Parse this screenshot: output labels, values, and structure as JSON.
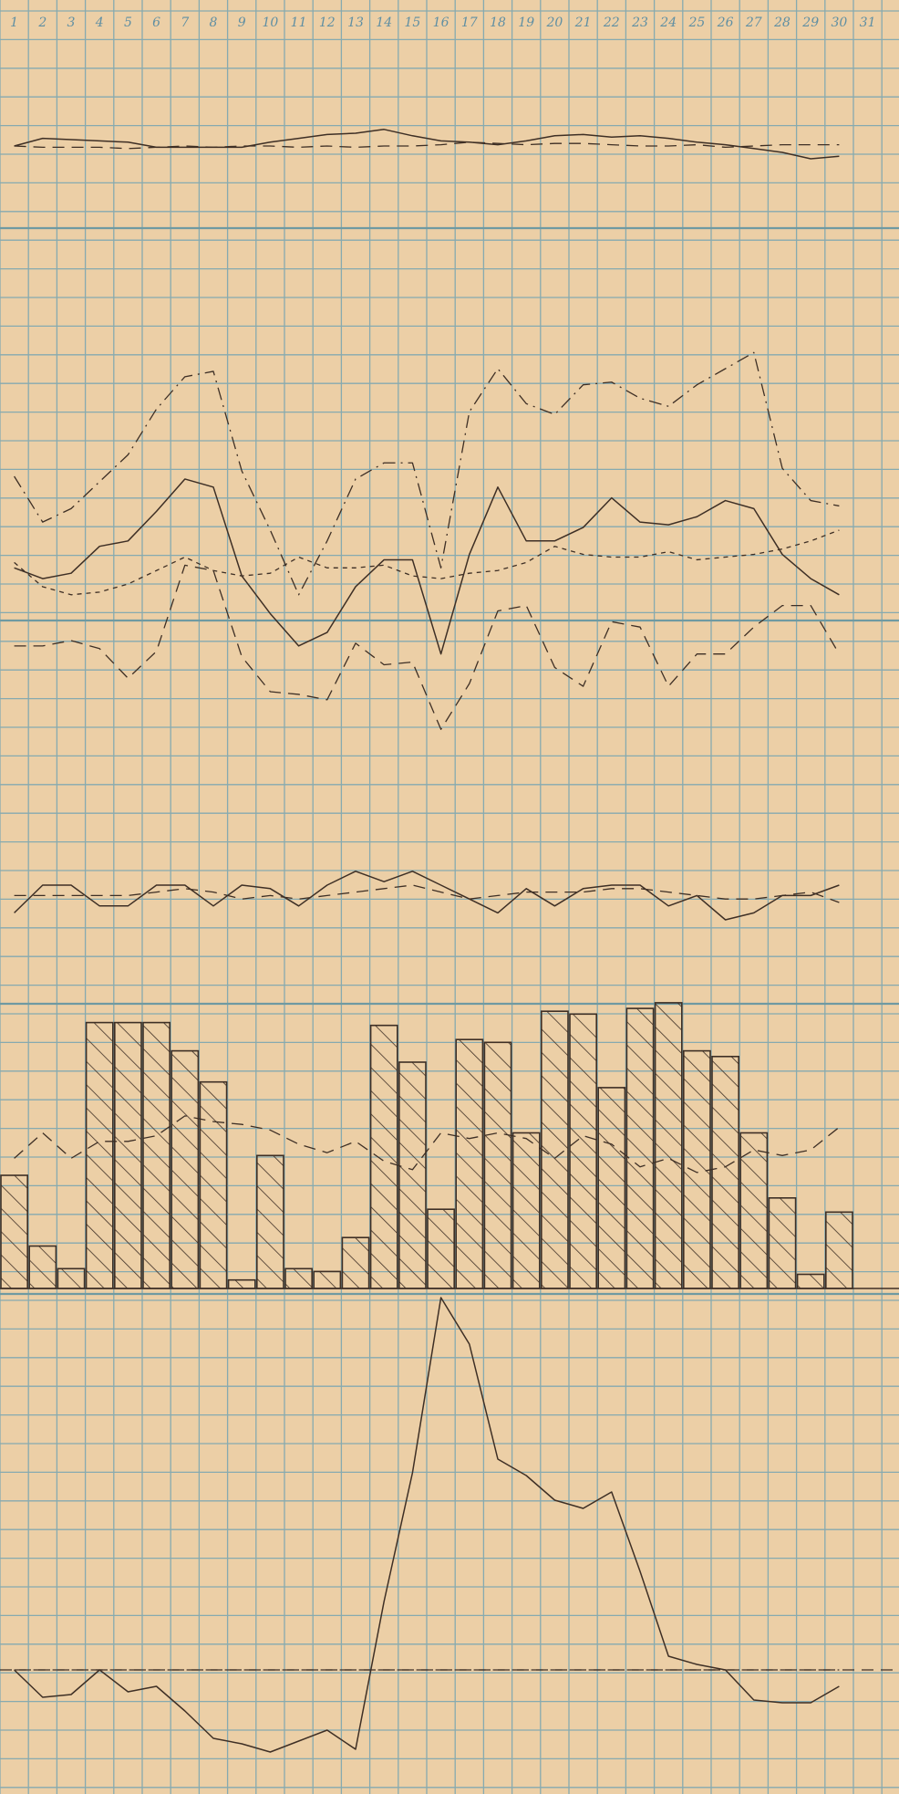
{
  "colors": {
    "paper": "#eccfa6",
    "grid": "#86aab0",
    "grid_bold": "#6f9aa2",
    "ink": "#3e2f25",
    "day_label": "#5f8fa3"
  },
  "days": [
    "1",
    "2",
    "3",
    "4",
    "5",
    "6",
    "7",
    "8",
    "9",
    "10",
    "11",
    "12",
    "13",
    "14",
    "15",
    "16",
    "17",
    "18",
    "19",
    "20",
    "21",
    "22",
    "23",
    "24",
    "25",
    "26",
    "27",
    "28",
    "29",
    "30",
    "31"
  ],
  "chart_data": [
    {
      "type": "line",
      "panel": "top",
      "x": [
        1,
        2,
        3,
        4,
        5,
        6,
        7,
        8,
        9,
        10,
        11,
        12,
        13,
        14,
        15,
        16,
        17,
        18,
        19,
        20,
        21,
        22,
        23,
        24,
        25,
        26,
        27,
        28,
        29,
        30
      ],
      "series": [
        {
          "style": "solid",
          "values": [
            0.0,
            0.6,
            0.5,
            0.4,
            0.3,
            -0.1,
            -0.1,
            -0.1,
            -0.1,
            0.3,
            0.6,
            0.9,
            1.0,
            1.3,
            0.8,
            0.4,
            0.3,
            0.1,
            0.4,
            0.8,
            0.9,
            0.7,
            0.8,
            0.6,
            0.3,
            0.1,
            -0.2,
            -0.5,
            -1.0,
            -0.8
          ]
        },
        {
          "style": "dashed",
          "values": [
            0.0,
            -0.1,
            -0.1,
            -0.1,
            -0.2,
            -0.1,
            0.0,
            -0.1,
            0.0,
            0.0,
            -0.1,
            0.0,
            -0.1,
            0.0,
            0.0,
            0.1,
            0.3,
            0.2,
            0.1,
            0.2,
            0.2,
            0.1,
            0.0,
            0.0,
            0.1,
            -0.1,
            0.0,
            0.1,
            0.1,
            0.1
          ]
        }
      ]
    },
    {
      "type": "line",
      "panel": "upper-middle",
      "x": [
        1,
        2,
        3,
        4,
        5,
        6,
        7,
        8,
        9,
        10,
        11,
        12,
        13,
        14,
        15,
        16,
        17,
        18,
        19,
        20,
        21,
        22,
        23,
        24,
        25,
        26,
        27,
        28,
        29,
        30
      ],
      "series": [
        {
          "style": "dash-dot",
          "values": [
            8.0,
            6.3,
            6.8,
            7.8,
            8.8,
            10.5,
            11.7,
            11.9,
            8.2,
            6.0,
            3.6,
            5.6,
            7.9,
            8.5,
            8.5,
            4.6,
            10.4,
            12.0,
            10.7,
            10.3,
            11.4,
            11.5,
            10.9,
            10.6,
            11.4,
            12.0,
            12.6,
            8.3,
            7.1,
            6.9
          ]
        },
        {
          "style": "solid",
          "values": [
            4.6,
            4.2,
            4.4,
            5.4,
            5.6,
            6.7,
            7.9,
            7.6,
            4.3,
            2.9,
            1.7,
            2.2,
            3.9,
            4.9,
            4.9,
            1.4,
            5.1,
            7.6,
            5.6,
            5.6,
            6.1,
            7.2,
            6.3,
            6.2,
            6.5,
            7.1,
            6.8,
            5.1,
            4.2,
            3.6
          ]
        },
        {
          "style": "dashed",
          "values": [
            1.7,
            1.7,
            1.9,
            1.6,
            0.5,
            1.5,
            4.7,
            4.5,
            1.3,
            0.0,
            -0.1,
            -0.3,
            1.8,
            1.0,
            1.1,
            -1.4,
            0.3,
            3.0,
            3.2,
            0.9,
            0.2,
            2.6,
            2.4,
            0.2,
            1.4,
            1.4,
            2.4,
            3.2,
            3.2,
            1.4
          ]
        },
        {
          "style": "dotted",
          "values": [
            4.8,
            3.9,
            3.6,
            3.7,
            4.0,
            4.5,
            5.0,
            4.5,
            4.3,
            4.4,
            5.0,
            4.6,
            4.6,
            4.7,
            4.3,
            4.2,
            4.4,
            4.5,
            4.8,
            5.4,
            5.1,
            5.0,
            5.0,
            5.2,
            4.9,
            5.0,
            5.1,
            5.3,
            5.6,
            6.0
          ]
        }
      ]
    },
    {
      "type": "line",
      "panel": "lower-middle",
      "x": [
        1,
        2,
        3,
        4,
        5,
        6,
        7,
        8,
        9,
        10,
        11,
        12,
        13,
        14,
        15,
        16,
        17,
        18,
        19,
        20,
        21,
        22,
        23,
        24,
        25,
        26,
        27,
        28,
        29,
        30
      ],
      "series": [
        {
          "style": "solid",
          "values": [
            -0.8,
            0.0,
            0.0,
            -0.6,
            -0.6,
            0.0,
            0.0,
            -0.6,
            0.0,
            -0.1,
            -0.6,
            0.0,
            0.4,
            0.1,
            0.4,
            0.0,
            -0.4,
            -0.8,
            -0.1,
            -0.6,
            -0.1,
            0.0,
            0.0,
            -0.6,
            -0.3,
            -1.0,
            -0.8,
            -0.3,
            -0.3,
            0.0
          ]
        },
        {
          "style": "dashed",
          "values": [
            -0.3,
            -0.3,
            -0.3,
            -0.3,
            -0.3,
            -0.2,
            -0.1,
            -0.2,
            -0.4,
            -0.3,
            -0.4,
            -0.3,
            -0.2,
            -0.1,
            0.0,
            -0.2,
            -0.4,
            -0.3,
            -0.2,
            -0.2,
            -0.2,
            -0.1,
            -0.1,
            -0.2,
            -0.3,
            -0.4,
            -0.4,
            -0.3,
            -0.2,
            -0.5
          ]
        }
      ]
    },
    {
      "type": "bar",
      "panel": "bars",
      "categories": [
        "1",
        "2",
        "3",
        "4",
        "5",
        "6",
        "7",
        "8",
        "9",
        "10",
        "11",
        "12",
        "13",
        "14",
        "15",
        "16",
        "17",
        "18",
        "19",
        "20",
        "21",
        "22",
        "23",
        "24",
        "25",
        "26",
        "27",
        "28",
        "29",
        "30"
      ],
      "values": [
        4.0,
        1.5,
        0.7,
        9.4,
        9.4,
        9.4,
        8.4,
        7.3,
        0.3,
        4.7,
        0.7,
        0.6,
        1.8,
        9.3,
        8.0,
        2.8,
        8.8,
        8.7,
        5.5,
        9.8,
        9.7,
        7.1,
        9.9,
        10.1,
        8.4,
        8.2,
        5.5,
        3.2,
        0.5,
        2.7
      ],
      "series": [
        {
          "style": "dashed",
          "values": [
            4.6,
            5.5,
            4.6,
            5.2,
            5.2,
            5.4,
            6.1,
            5.9,
            5.8,
            5.6,
            5.1,
            4.8,
            5.2,
            4.5,
            4.2,
            5.5,
            5.3,
            5.5,
            5.3,
            4.6,
            5.4,
            5.1,
            4.3,
            4.6,
            4.1,
            4.3,
            4.9,
            4.7,
            4.9,
            5.7
          ]
        }
      ]
    },
    {
      "type": "line",
      "panel": "bottom",
      "x": [
        1,
        2,
        3,
        4,
        5,
        6,
        7,
        8,
        9,
        10,
        11,
        12,
        13,
        14,
        15,
        16,
        17,
        18,
        19,
        20,
        21,
        22,
        23,
        24,
        25,
        26,
        27,
        28,
        29,
        30
      ],
      "series": [
        {
          "style": "solid",
          "values": [
            0.0,
            -1.0,
            -0.9,
            0.0,
            -0.8,
            -0.6,
            -1.5,
            -2.5,
            -2.7,
            -3.0,
            -2.6,
            -2.2,
            -2.9,
            2.5,
            7.2,
            13.6,
            11.9,
            7.7,
            7.1,
            6.2,
            5.9,
            6.5,
            3.6,
            0.5,
            0.2,
            0.0,
            -1.1,
            -1.2,
            -1.2,
            -0.6
          ]
        },
        {
          "style": "dashed",
          "values": [
            0.0,
            0.0,
            0.0,
            0.0,
            0.0,
            0.0,
            0.0,
            0.0,
            0.0,
            0.0,
            0.0,
            0.0,
            0.0,
            0.0,
            0.0,
            0.0,
            0.0,
            0.0,
            0.0,
            0.0,
            0.0,
            0.0,
            0.0,
            0.0,
            0.0,
            0.0,
            0.0,
            0.0,
            0.0,
            0.0
          ]
        }
      ]
    }
  ]
}
